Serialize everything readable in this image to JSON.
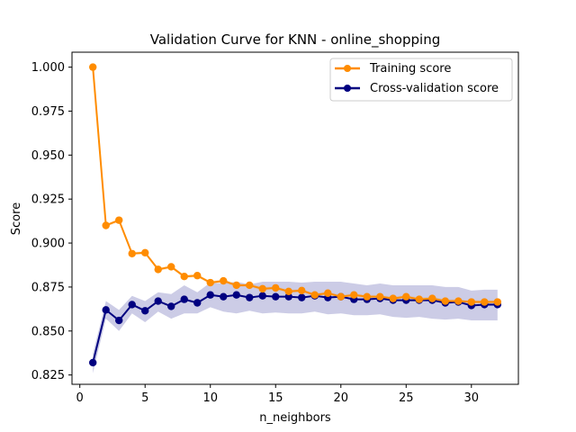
{
  "chart_data": {
    "type": "line",
    "title": "Validation Curve for KNN - online_shopping",
    "xlabel": "n_neighbors",
    "ylabel": "Score",
    "xlim": [
      -0.6,
      33.6
    ],
    "ylim": [
      0.8197,
      1.0085
    ],
    "xticks": [
      0,
      5,
      10,
      15,
      20,
      25,
      30
    ],
    "yticks": [
      0.825,
      0.85,
      0.875,
      0.9,
      0.925,
      0.95,
      0.975,
      1.0
    ],
    "ytick_labels": [
      "0.825",
      "0.850",
      "0.875",
      "0.900",
      "0.925",
      "0.950",
      "0.975",
      "1.000"
    ],
    "grid": false,
    "legend_position": "top-right",
    "x": [
      1,
      2,
      3,
      4,
      5,
      6,
      7,
      8,
      9,
      10,
      11,
      12,
      13,
      14,
      15,
      16,
      17,
      18,
      19,
      20,
      21,
      22,
      23,
      24,
      25,
      26,
      27,
      28,
      29,
      30,
      31,
      32
    ],
    "series": [
      {
        "name": "Training score",
        "color": "#ff8c00",
        "band_color": "#ff8c00",
        "values": [
          1.0,
          0.91,
          0.913,
          0.894,
          0.8945,
          0.885,
          0.8865,
          0.881,
          0.8815,
          0.8775,
          0.8785,
          0.876,
          0.876,
          0.874,
          0.8745,
          0.8725,
          0.873,
          0.8705,
          0.8715,
          0.8695,
          0.8705,
          0.8695,
          0.8695,
          0.8685,
          0.8695,
          0.868,
          0.8685,
          0.867,
          0.867,
          0.8665,
          0.8665,
          0.8665
        ],
        "band_lower": [
          1.0,
          0.909,
          0.912,
          0.893,
          0.8935,
          0.884,
          0.8855,
          0.88,
          0.8805,
          0.8765,
          0.8775,
          0.875,
          0.875,
          0.873,
          0.8735,
          0.8715,
          0.872,
          0.8695,
          0.8705,
          0.8685,
          0.8695,
          0.8685,
          0.8685,
          0.8675,
          0.8685,
          0.867,
          0.8675,
          0.866,
          0.866,
          0.8655,
          0.8655,
          0.8655
        ],
        "band_upper": [
          1.0,
          0.911,
          0.914,
          0.895,
          0.8955,
          0.886,
          0.8875,
          0.882,
          0.8825,
          0.8785,
          0.8795,
          0.877,
          0.877,
          0.875,
          0.8755,
          0.8735,
          0.874,
          0.8715,
          0.8725,
          0.8705,
          0.8715,
          0.8705,
          0.8705,
          0.8695,
          0.8705,
          0.869,
          0.8695,
          0.868,
          0.868,
          0.8675,
          0.8675,
          0.8675
        ]
      },
      {
        "name": "Cross-validation score",
        "color": "#000080",
        "band_color": "#000080",
        "values": [
          0.832,
          0.862,
          0.856,
          0.865,
          0.8615,
          0.867,
          0.864,
          0.868,
          0.866,
          0.8705,
          0.8695,
          0.8705,
          0.869,
          0.87,
          0.8695,
          0.8695,
          0.869,
          0.87,
          0.869,
          0.8695,
          0.868,
          0.868,
          0.8685,
          0.8675,
          0.8675,
          0.8675,
          0.8675,
          0.866,
          0.8665,
          0.8645,
          0.865,
          0.865
        ],
        "band_lower": [
          0.826,
          0.857,
          0.85,
          0.86,
          0.855,
          0.861,
          0.857,
          0.86,
          0.86,
          0.8635,
          0.861,
          0.86,
          0.8615,
          0.86,
          0.8605,
          0.86,
          0.86,
          0.861,
          0.8595,
          0.86,
          0.859,
          0.859,
          0.8595,
          0.858,
          0.8575,
          0.858,
          0.857,
          0.8565,
          0.857,
          0.856,
          0.856,
          0.856
        ],
        "band_upper": [
          0.837,
          0.867,
          0.862,
          0.87,
          0.867,
          0.872,
          0.871,
          0.876,
          0.872,
          0.8775,
          0.877,
          0.878,
          0.8765,
          0.878,
          0.878,
          0.878,
          0.8775,
          0.878,
          0.878,
          0.878,
          0.877,
          0.876,
          0.877,
          0.876,
          0.876,
          0.876,
          0.876,
          0.875,
          0.875,
          0.873,
          0.8735,
          0.8735
        ]
      }
    ]
  }
}
